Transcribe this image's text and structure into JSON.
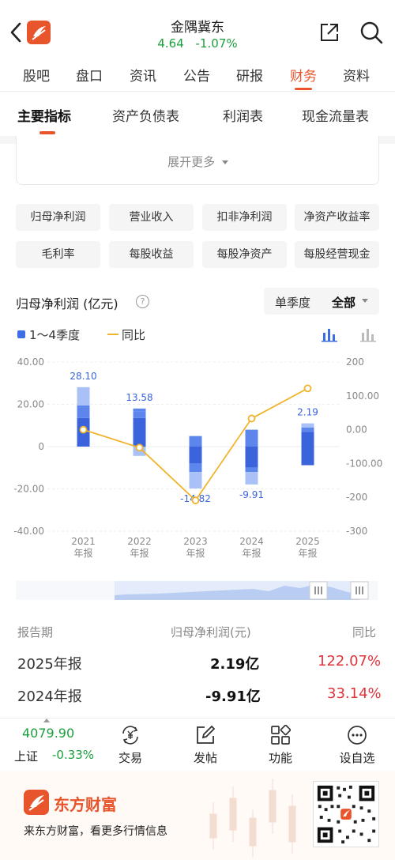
{
  "header": {
    "stock_name": "金隅冀东",
    "price": "4.64",
    "change_pct": "-1.07%"
  },
  "tabs": [
    "股吧",
    "盘口",
    "资讯",
    "公告",
    "研报",
    "财务",
    "资料"
  ],
  "active_tab": "财务",
  "subtabs": [
    "主要指标",
    "资产负债表",
    "利润表",
    "现金流量表"
  ],
  "active_subtab": "主要指标",
  "expand": {
    "label": "展开更多"
  },
  "metric_chips": [
    "归母净利润",
    "营业收入",
    "扣非净利润",
    "净资产收益率",
    "毛利率",
    "每股收益",
    "每股净资产",
    "每股经营现金"
  ],
  "chart_header": {
    "title": "归母净利润 (亿元)",
    "help_glyph": "?",
    "period_single": "单季度",
    "period_all": "全部"
  },
  "legend": {
    "bars": "1～4季度",
    "line": "同比"
  },
  "colors": {
    "accent": "#e8542c",
    "green": "#1a9f3c",
    "red": "#e0343b",
    "bar_dark": "#3b63db",
    "bar_mid": "#5d86ec",
    "bar_light": "#a9c1f6",
    "line": "#f0b42a"
  },
  "chart_data": {
    "type": "bar",
    "categories": [
      "2021年报",
      "2022年报",
      "2023年报",
      "2024年报",
      "2025年报"
    ],
    "category_labels": [
      [
        "2021",
        "年报"
      ],
      [
        "2022",
        "年报"
      ],
      [
        "2023",
        "年报"
      ],
      [
        "2024",
        "年报"
      ],
      [
        "2025",
        "年报"
      ]
    ],
    "annual_values": [
      28.1,
      13.58,
      -14.82,
      -9.91,
      2.19
    ],
    "annual_value_labels": [
      "28.10",
      "13.58",
      "-14.82",
      "-9.91",
      "2.19"
    ],
    "quarter_stacks": [
      [
        {
          "from": 0,
          "to": 13.5,
          "shade": "dark"
        },
        {
          "from": 13.5,
          "to": 19.5,
          "shade": "mid"
        },
        {
          "from": 19.5,
          "to": 28.1,
          "shade": "light"
        }
      ],
      [
        {
          "from": 0,
          "to": 13.5,
          "shade": "dark"
        },
        {
          "from": 13.5,
          "to": 16.5,
          "shade": "mid"
        },
        {
          "from": 16.5,
          "to": 18.0,
          "shade": "mid"
        },
        {
          "from": 0,
          "to": -4.4,
          "shade": "light"
        }
      ],
      [
        {
          "from": 5.0,
          "to": 0,
          "shade": "mid"
        },
        {
          "from": 0,
          "to": -8.0,
          "shade": "dark"
        },
        {
          "from": -8.0,
          "to": -12.0,
          "shade": "mid"
        },
        {
          "from": -12.0,
          "to": -19.8,
          "shade": "light"
        }
      ],
      [
        {
          "from": 8.0,
          "to": 0,
          "shade": "mid"
        },
        {
          "from": 0,
          "to": -10.0,
          "shade": "dark"
        },
        {
          "from": -10.0,
          "to": -12.0,
          "shade": "mid"
        },
        {
          "from": -12.0,
          "to": -17.9,
          "shade": "light"
        }
      ],
      [
        {
          "from": 11.0,
          "to": 9.0,
          "shade": "light"
        },
        {
          "from": 9.0,
          "to": 7.0,
          "shade": "mid"
        },
        {
          "from": 7.0,
          "to": 0,
          "shade": "dark"
        },
        {
          "from": 0,
          "to": -8.8,
          "shade": "dark"
        }
      ]
    ],
    "yoy_series": {
      "name": "同比",
      "values": [
        0,
        -53,
        -209,
        33.14,
        122.07
      ]
    },
    "left_axis": {
      "ticks": [
        40,
        20,
        0,
        -20,
        -40
      ],
      "labels": [
        "40.00",
        "20.00",
        "0",
        "-20.00",
        "-40.00"
      ],
      "ylim": [
        -40,
        40
      ]
    },
    "right_axis": {
      "ticks": [
        200,
        100,
        0,
        -100,
        -200,
        -300
      ],
      "labels": [
        "200",
        "100.00",
        "0.00",
        "-100.00",
        "-200",
        "-300"
      ],
      "ylim": [
        -300,
        200
      ]
    },
    "grid": true
  },
  "table": {
    "headers": [
      "报告期",
      "归母净利润(元)",
      "同比"
    ],
    "rows": [
      {
        "period": "2025年报",
        "value": "2.19亿",
        "yoy": "122.07%"
      },
      {
        "period": "2024年报",
        "value": "-9.91亿",
        "yoy": "33.14%"
      }
    ]
  },
  "bottom_nav": {
    "index_value": "4079.90",
    "index_name": "上证",
    "index_change": "-0.33%",
    "items": [
      "交易",
      "发帖",
      "功能",
      "设自选"
    ]
  },
  "promo": {
    "brand": "东方财富",
    "tagline": "来东方财富，看更多行情信息"
  }
}
